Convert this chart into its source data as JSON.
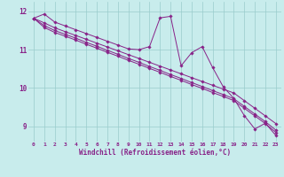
{
  "bg_color": "#c8ecec",
  "line_color": "#882288",
  "grid_color": "#99cccc",
  "xlabel": "Windchill (Refroidissement éolien,°C)",
  "xlim": [
    -0.5,
    23.5
  ],
  "ylim": [
    8.6,
    12.25
  ],
  "yticks": [
    9,
    10,
    11,
    12
  ],
  "xticks": [
    0,
    1,
    2,
    3,
    4,
    5,
    6,
    7,
    8,
    9,
    10,
    11,
    12,
    13,
    14,
    15,
    16,
    17,
    18,
    19,
    20,
    21,
    22,
    23
  ],
  "series": [
    [
      11.82,
      11.93,
      11.72,
      11.62,
      11.52,
      11.42,
      11.32,
      11.22,
      11.12,
      11.02,
      11.0,
      11.08,
      11.83,
      11.87,
      10.58,
      10.92,
      11.08,
      10.53,
      10.03,
      9.73,
      9.28,
      8.93,
      9.08,
      8.76
    ],
    [
      11.82,
      11.7,
      11.57,
      11.47,
      11.37,
      11.27,
      11.17,
      11.07,
      10.97,
      10.87,
      10.77,
      10.67,
      10.57,
      10.47,
      10.37,
      10.27,
      10.17,
      10.07,
      9.97,
      9.87,
      9.67,
      9.47,
      9.27,
      9.07
    ],
    [
      11.82,
      11.63,
      11.5,
      11.4,
      11.3,
      11.19,
      11.09,
      10.98,
      10.88,
      10.77,
      10.67,
      10.56,
      10.46,
      10.35,
      10.25,
      10.14,
      10.04,
      9.93,
      9.83,
      9.72,
      9.52,
      9.32,
      9.12,
      8.9
    ],
    [
      11.82,
      11.58,
      11.45,
      11.35,
      11.25,
      11.14,
      11.04,
      10.93,
      10.83,
      10.72,
      10.62,
      10.51,
      10.41,
      10.3,
      10.2,
      10.09,
      9.99,
      9.88,
      9.78,
      9.67,
      9.47,
      9.27,
      9.07,
      8.84
    ]
  ]
}
